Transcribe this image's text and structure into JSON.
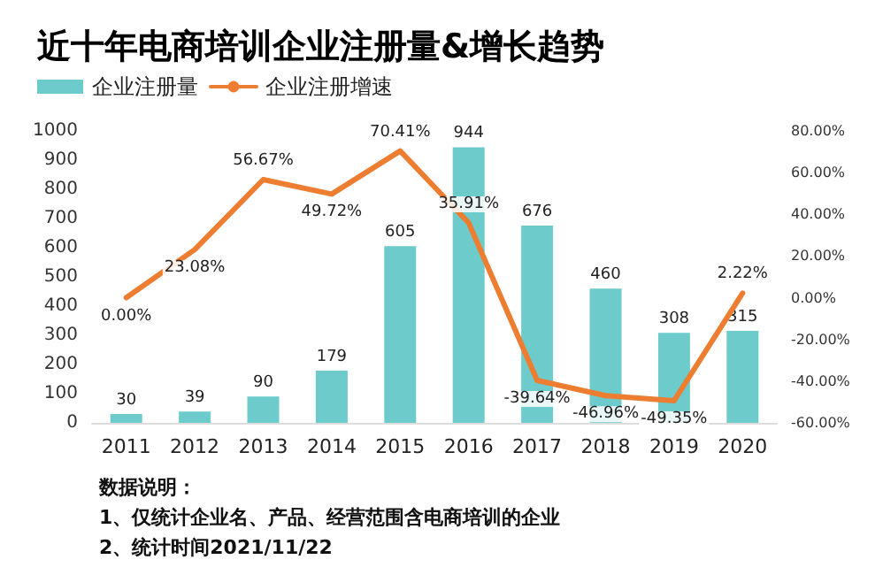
{
  "chart_data": {
    "type": "bar",
    "title": "近十年电商培训企业注册量&增长趋势",
    "categories": [
      "2011",
      "2012",
      "2013",
      "2014",
      "2015",
      "2016",
      "2017",
      "2018",
      "2019",
      "2020"
    ],
    "series": [
      {
        "name": "企业注册量",
        "color": "#6ecbcb",
        "values": [
          30,
          39,
          90,
          179,
          605,
          944,
          676,
          460,
          308,
          315
        ],
        "data_labels": true
      },
      {
        "name": "企业注册增速",
        "type": "line",
        "axis": "y2",
        "color": "#ed7d31",
        "values": [
          0.0,
          23.08,
          56.67,
          49.72,
          70.41,
          35.91,
          -39.64,
          -46.96,
          -49.35,
          2.22
        ],
        "value_labels": [
          "0.00%",
          "23.08%",
          "56.67%",
          "49.72%",
          "70.41%",
          "35.91%",
          "-39.64%",
          "-46.96%",
          "-49.35%",
          "2.22%"
        ]
      }
    ],
    "ylim": [
      0,
      1000
    ],
    "yticks": [
      0,
      100,
      200,
      300,
      400,
      500,
      600,
      700,
      800,
      900,
      1000
    ],
    "y2lim": [
      -60,
      80
    ],
    "y2ticks": [
      {
        "value": -60,
        "label": "-60.00%"
      },
      {
        "value": -40,
        "label": "-40.00%"
      },
      {
        "value": -20,
        "label": "-20.00%"
      },
      {
        "value": 0,
        "label": "0.00%"
      },
      {
        "value": 20,
        "label": "20.00%"
      },
      {
        "value": 40,
        "label": "40.00%"
      },
      {
        "value": 60,
        "label": "60.00%"
      },
      {
        "value": 80,
        "label": "80.00%"
      }
    ],
    "grid": false,
    "legend": "top left",
    "marker": "none",
    "line_style": "solid",
    "annotations": [
      "数据说明：",
      "1、仅统计企业名、产品、经营范围含电商培训的企业",
      "2、统计时间2021/11/22"
    ]
  }
}
